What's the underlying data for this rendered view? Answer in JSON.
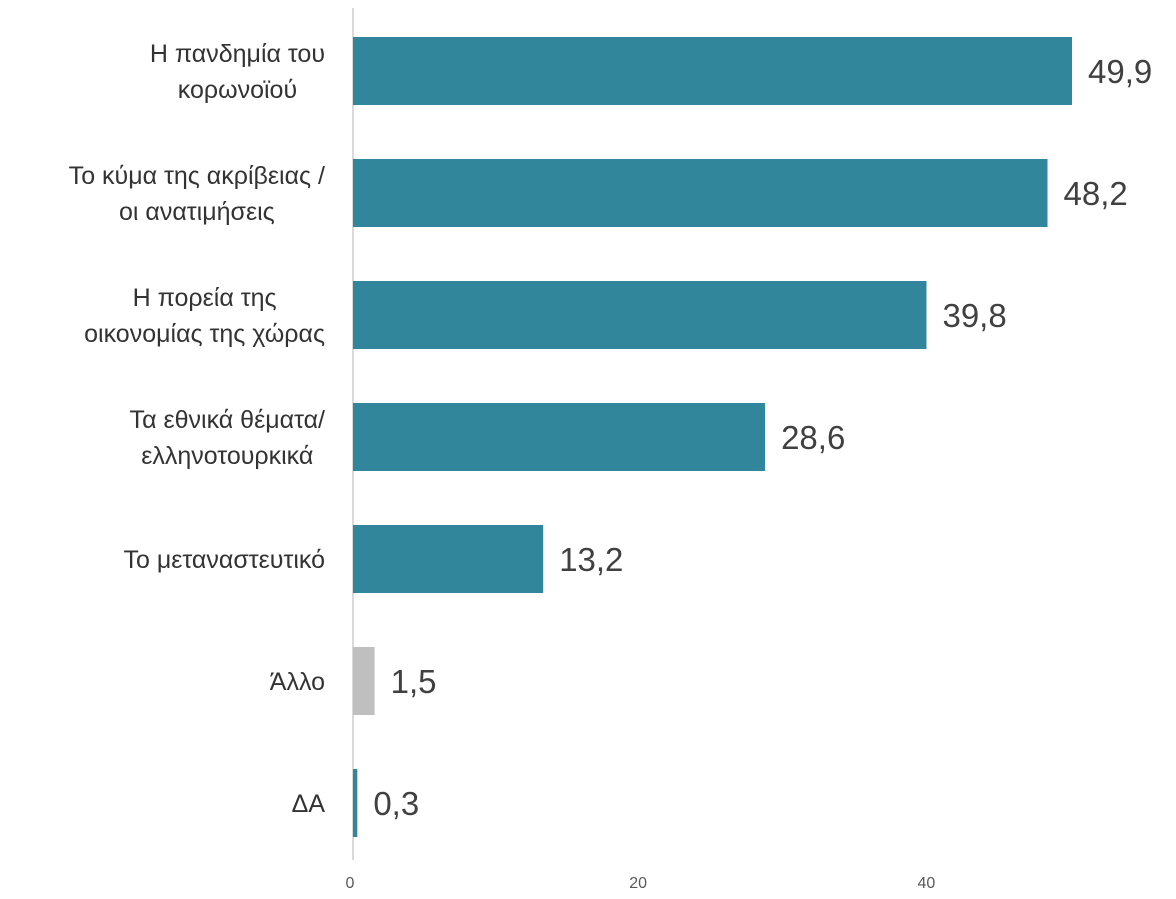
{
  "chart_data": {
    "type": "bar",
    "orientation": "horizontal",
    "categories": [
      [
        "Η πανδημία του",
        "κορωνοϊού"
      ],
      [
        "Το κύμα της ακρίβειας /",
        "οι ανατιμήσεις"
      ],
      [
        "Η πορεία της",
        "οικονομίας της χώρας"
      ],
      [
        "Τα εθνικά θέματα/",
        "ελληνοτουρκικά"
      ],
      [
        "Το μεταναστευτικό"
      ],
      [
        "Άλλο"
      ],
      [
        "ΔΑ"
      ]
    ],
    "values": [
      49.9,
      48.2,
      39.8,
      28.6,
      13.2,
      1.5,
      0.3
    ],
    "value_labels": [
      "49,9",
      "48,2",
      "39,8",
      "28,6",
      "13,2",
      "1,5",
      "0,3"
    ],
    "bar_colors": [
      "#31869b",
      "#31869b",
      "#31869b",
      "#31869b",
      "#31869b",
      "#bfbfbf",
      "#31869b"
    ],
    "x_ticks": [
      0,
      20,
      40
    ],
    "x_tick_labels": [
      "0",
      "20",
      "40"
    ],
    "xlim": [
      0,
      55
    ],
    "grid": false,
    "title": "",
    "xlabel": "",
    "ylabel": "",
    "legend": "none"
  }
}
